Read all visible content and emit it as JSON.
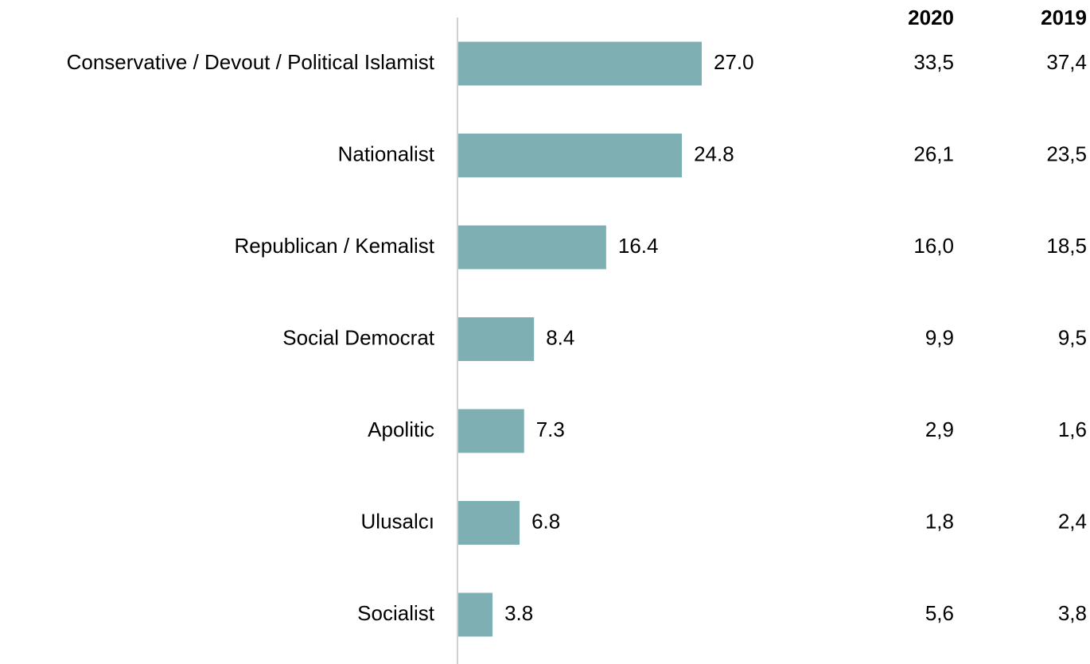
{
  "chart_data": {
    "type": "bar",
    "orientation": "horizontal",
    "categories": [
      "Conservative / Devout / Political Islamist",
      "Nationalist",
      "Republican / Kemalist",
      "Social Democrat",
      "Apolitic",
      "Ulusalcı",
      "Socialist"
    ],
    "values": [
      27.0,
      24.8,
      16.4,
      8.4,
      7.3,
      6.8,
      3.8
    ],
    "value_labels": [
      "27.0",
      "24.8",
      "16.4",
      "8.4",
      "7.3",
      "6.8",
      "3.8"
    ],
    "bar_color": "#7eafb3",
    "axis_color": "#d0d0d0",
    "xlim": [
      0,
      60
    ],
    "grid": false,
    "legend": "none",
    "table": {
      "columns": [
        "2020",
        "2019"
      ],
      "rows": [
        [
          "33,5",
          "37,4"
        ],
        [
          "26,1",
          "23,5"
        ],
        [
          "16,0",
          "18,5"
        ],
        [
          "9,9",
          "9,5"
        ],
        [
          "2,9",
          "1,6"
        ],
        [
          "1,8",
          "2,4"
        ],
        [
          "5,6",
          "3,8"
        ]
      ]
    }
  }
}
